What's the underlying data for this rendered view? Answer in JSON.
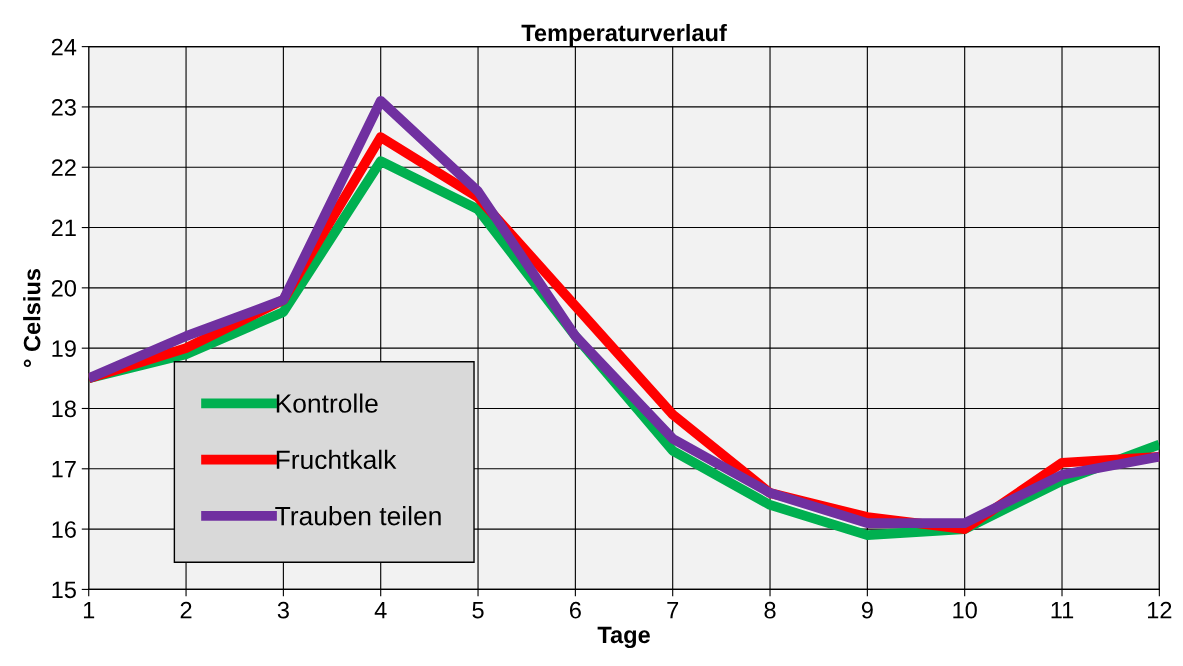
{
  "chart_data": {
    "type": "line",
    "title": "Temperaturverlauf",
    "xlabel": "Tage",
    "ylabel": "° Celsius",
    "x": [
      1,
      2,
      3,
      4,
      5,
      6,
      7,
      8,
      9,
      10,
      11,
      12
    ],
    "series": [
      {
        "name": "Kontrolle",
        "color": "#00b050",
        "values": [
          18.5,
          18.9,
          19.6,
          22.1,
          21.3,
          19.2,
          17.3,
          16.4,
          15.9,
          16.0,
          16.8,
          17.4
        ]
      },
      {
        "name": "Fruchtkalk",
        "color": "#ff0000",
        "values": [
          18.5,
          19.0,
          19.8,
          22.5,
          21.5,
          19.7,
          17.9,
          16.6,
          16.2,
          16.0,
          17.1,
          17.2
        ]
      },
      {
        "name": "Trauben teilen",
        "color": "#7030a0",
        "values": [
          18.5,
          19.2,
          19.8,
          23.1,
          21.6,
          19.2,
          17.5,
          16.6,
          16.1,
          16.1,
          16.9,
          17.2
        ]
      }
    ],
    "xlim": [
      1,
      12
    ],
    "xticks": [
      1,
      2,
      3,
      4,
      5,
      6,
      7,
      8,
      9,
      10,
      11,
      12
    ],
    "ylim": [
      15,
      24
    ],
    "yticks": [
      15,
      16,
      17,
      18,
      19,
      20,
      21,
      22,
      23,
      24
    ],
    "grid": true,
    "legend": "bottom left",
    "marker": "none",
    "line_style": "solid"
  }
}
